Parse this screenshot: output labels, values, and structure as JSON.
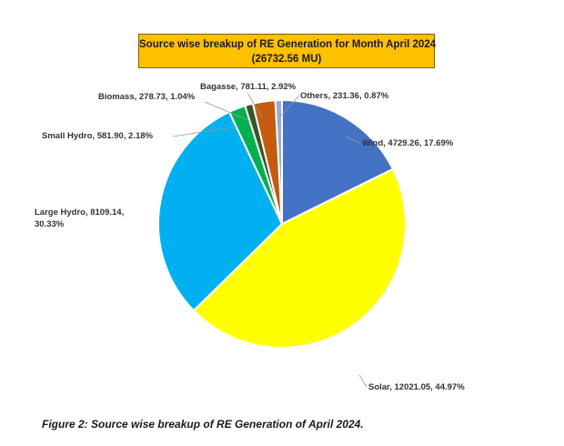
{
  "chart_data": {
    "type": "pie",
    "title": "Source wise breakup of RE Generation for Month April 2024",
    "subtitle": "(26732.56 MU)",
    "slices": [
      {
        "name": "Wind",
        "value": 4729.26,
        "percent": "17.69%",
        "label": "Wind, 4729.26, 17.69%",
        "color": "#4472c4"
      },
      {
        "name": "Solar",
        "value": 12021.05,
        "percent": "44.97%",
        "label": "Solar, 12021.05, 44.97%",
        "color": "#ffff00"
      },
      {
        "name": "Large Hydro",
        "value": 8109.14,
        "percent": "30.33%",
        "label": "Large Hydro, 8109.14, 30.33%",
        "label_lines": [
          "Large Hydro, 8109.14,",
          "30.33%"
        ],
        "color": "#00b0f0"
      },
      {
        "name": "Small Hydro",
        "value": 581.9,
        "percent": "2.18%",
        "label": "Small Hydro, 581.90, 2.18%",
        "color": "#00b050"
      },
      {
        "name": "Biomass",
        "value": 278.73,
        "percent": "1.04%",
        "label": "Biomass, 278.73, 1.04%",
        "color": "#375623"
      },
      {
        "name": "Bagasse",
        "value": 781.11,
        "percent": "2.92%",
        "label": "Bagasse, 781.11, 2.92%",
        "color": "#c55a11"
      },
      {
        "name": "Others",
        "value": 231.36,
        "percent": "0.87%",
        "label": "Others, 231.36, 0.87%",
        "color": "#8faadc"
      }
    ],
    "start_angle": "12 o'clock",
    "direction": "clockwise"
  },
  "caption": "Figure 2: Source wise breakup of RE Generation of April 2024."
}
